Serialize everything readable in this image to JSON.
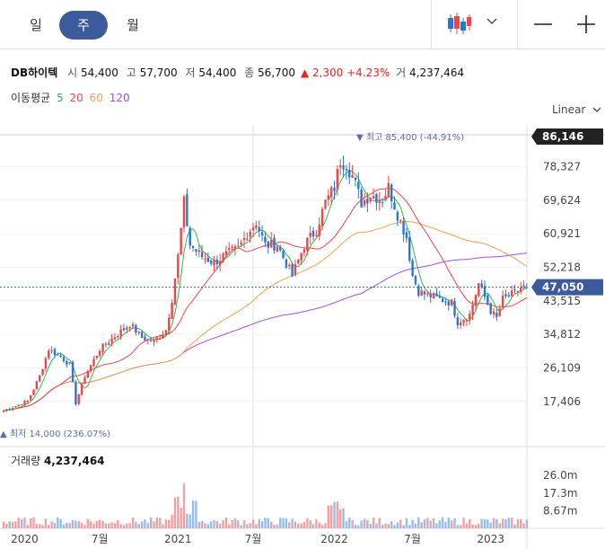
{
  "periods": {
    "day": "일",
    "week": "주",
    "month": "월"
  },
  "stock": {
    "name": "DB하이텍",
    "open_label": "시",
    "open": "54,400",
    "high_label": "고",
    "high": "57,700",
    "low_label": "저",
    "low": "54,400",
    "close_label": "종",
    "close": "56,700",
    "change_arrow": "▲",
    "change": "2,300",
    "change_pct": "+4.23%",
    "volume_label": "거",
    "volume": "4,237,464"
  },
  "ma": {
    "label": "이동평균",
    "p5": "5",
    "p20": "20",
    "p60": "60",
    "p120": "120"
  },
  "scale_label": "Linear",
  "icons": {
    "chart_type": "candlestick-icon",
    "dropdown": "chevron-down-icon",
    "zoom_out": "minus-icon",
    "zoom_in": "plus-icon"
  },
  "colors": {
    "up": "#e8474c",
    "down": "#2a74d6",
    "ma5": "#3bb54a",
    "ma20": "#e8474c",
    "ma60": "#f2a14e",
    "ma120": "#a04ee8",
    "accent": "#3d5a9a"
  },
  "chart_data": {
    "type": "candlestick",
    "y_ticks": [
      "78,327",
      "69,624",
      "60,921",
      "52,218",
      "43,515",
      "34,812",
      "26,109",
      "17,406"
    ],
    "y_tick_values": [
      78327,
      69624,
      60921,
      52218,
      43515,
      34812,
      26109,
      17406
    ],
    "ylim": [
      12000,
      86146
    ],
    "x_ticks": [
      "2020",
      "7월",
      "2021",
      "7월",
      "2022",
      "7월",
      "2023"
    ],
    "x_tick_index": [
      7,
      32,
      58,
      83,
      110,
      136,
      162
    ],
    "max_value_label": "86,146",
    "current_value_label": "47,050",
    "current_value": 47050,
    "high_annotation": "최고 85,400 (-44.91%)",
    "high_annotation_value": 85400,
    "low_annotation": "최저 14,000 (236.07%)",
    "low_annotation_value": 14000,
    "anchors": [
      [
        0,
        15000
      ],
      [
        8,
        17500
      ],
      [
        12,
        24000
      ],
      [
        15,
        31000
      ],
      [
        19,
        29000
      ],
      [
        22,
        27000
      ],
      [
        24,
        17000
      ],
      [
        27,
        24000
      ],
      [
        32,
        31000
      ],
      [
        38,
        35000
      ],
      [
        42,
        37500
      ],
      [
        46,
        34000
      ],
      [
        50,
        33000
      ],
      [
        54,
        36000
      ],
      [
        56,
        44000
      ],
      [
        58,
        55000
      ],
      [
        60,
        69000
      ],
      [
        62,
        58000
      ],
      [
        66,
        55000
      ],
      [
        70,
        53500
      ],
      [
        74,
        55500
      ],
      [
        78,
        57000
      ],
      [
        81,
        61000
      ],
      [
        84,
        64000
      ],
      [
        87,
        58000
      ],
      [
        91,
        58000
      ],
      [
        96,
        50000
      ],
      [
        100,
        58000
      ],
      [
        104,
        62000
      ],
      [
        107,
        69000
      ],
      [
        110,
        73000
      ],
      [
        112,
        80000
      ],
      [
        114,
        79000
      ],
      [
        116,
        76000
      ],
      [
        119,
        69000
      ],
      [
        122,
        71000
      ],
      [
        126,
        70000
      ],
      [
        128,
        73000
      ],
      [
        131,
        66000
      ],
      [
        134,
        60000
      ],
      [
        136,
        50000
      ],
      [
        138,
        46000
      ],
      [
        141,
        45000
      ],
      [
        145,
        44000
      ],
      [
        149,
        43000
      ],
      [
        151,
        38000
      ],
      [
        155,
        40000
      ],
      [
        158,
        48000
      ],
      [
        162,
        41000
      ],
      [
        164,
        39000
      ],
      [
        166,
        44000
      ],
      [
        170,
        45500
      ],
      [
        172,
        47000
      ],
      [
        174,
        47050
      ]
    ],
    "volume": {
      "label": "거래량",
      "value": "4,237,464",
      "y_ticks": [
        "26.0m",
        "17.3m",
        "8.67m"
      ],
      "y_tick_values": [
        26000000,
        17300000,
        8670000
      ],
      "ylim": [
        0,
        30000000
      ]
    }
  }
}
